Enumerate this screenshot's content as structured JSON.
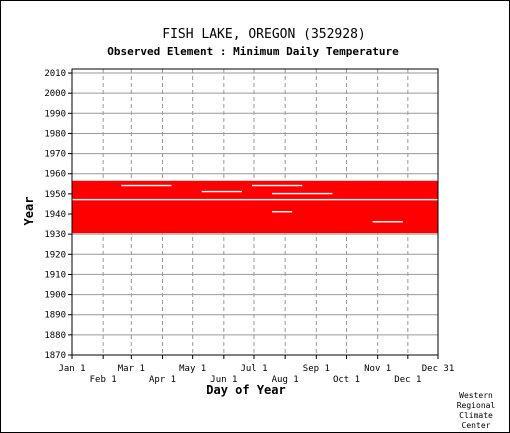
{
  "chart_data": {
    "type": "heatmap",
    "title": "FISH LAKE, OREGON   (352928)",
    "subtitle": "Observed Element : Minimum Daily Temperature",
    "xlabel": "Day of Year",
    "ylabel": "Year",
    "x_range": [
      "Jan 1",
      "Dec 31"
    ],
    "ylim": [
      1870,
      2012
    ],
    "y_ticks": [
      1870,
      1880,
      1890,
      1900,
      1910,
      1920,
      1930,
      1940,
      1950,
      1960,
      1970,
      1980,
      1990,
      2000,
      2010
    ],
    "x_ticks_upper": [
      "Jan 1",
      "Mar 1",
      "May 1",
      "Jul 1",
      "Sep 1",
      "Nov 1",
      "Dec 31"
    ],
    "x_ticks_lower": [
      "Feb 1",
      "Apr 1",
      "Jun 1",
      "Aug 1",
      "Oct 1",
      "Dec 1"
    ],
    "month_start_days": [
      1,
      32,
      60,
      91,
      121,
      152,
      182,
      213,
      244,
      274,
      305,
      335,
      365
    ],
    "data_color": "#ff0000",
    "grid": true,
    "observed_period": {
      "start_year": 1931,
      "end_year": 1956
    },
    "gap_rows": [
      {
        "year": 1947,
        "from_day": 1,
        "to_day": 365
      },
      {
        "year": 1954,
        "from_day": 50,
        "to_day": 100
      },
      {
        "year": 1954,
        "from_day": 180,
        "to_day": 230
      },
      {
        "year": 1951,
        "from_day": 130,
        "to_day": 170
      },
      {
        "year": 1950,
        "from_day": 200,
        "to_day": 260
      },
      {
        "year": 1941,
        "from_day": 200,
        "to_day": 220
      },
      {
        "year": 1936,
        "from_day": 300,
        "to_day": 330
      }
    ]
  },
  "credit": {
    "line1": "Western",
    "line2": "Regional",
    "line3": "Climate",
    "line4": "Center"
  }
}
